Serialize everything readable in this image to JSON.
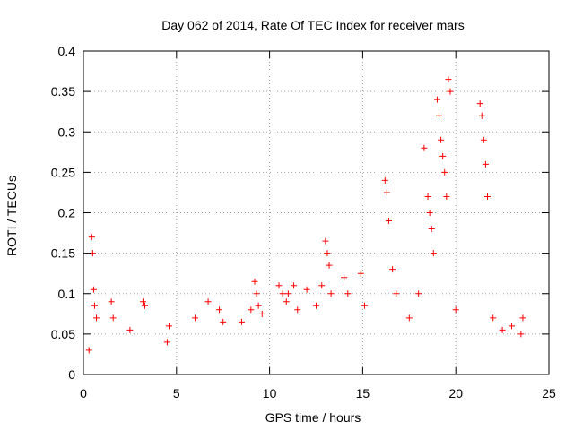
{
  "chart_data": {
    "type": "scatter",
    "title": "Day 062 of 2014, Rate Of TEC Index for receiver mars",
    "xlabel": "GPS time / hours",
    "ylabel": "ROTI / TECUs",
    "xlim": [
      0,
      25
    ],
    "ylim": [
      0,
      0.4
    ],
    "xticks": [
      0,
      5,
      10,
      15,
      20,
      25
    ],
    "yticks": [
      0,
      0.05,
      0.1,
      0.15,
      0.2,
      0.25,
      0.3,
      0.35,
      0.4
    ],
    "xtick_labels": [
      "0",
      "5",
      "10",
      "15",
      "20",
      "25"
    ],
    "ytick_labels": [
      "0",
      "0.05",
      "0.1",
      "0.15",
      "0.2",
      "0.25",
      "0.3",
      "0.35",
      "0.4"
    ],
    "grid": true,
    "marker": "+",
    "color": "#ff0000",
    "series": [
      {
        "name": "ROTI",
        "x": [
          0.3,
          0.45,
          0.5,
          0.55,
          0.6,
          0.7,
          1.5,
          1.6,
          2.5,
          3.2,
          3.3,
          4.5,
          4.6,
          6.0,
          6.7,
          7.3,
          7.5,
          8.5,
          9.0,
          9.2,
          9.3,
          9.4,
          9.6,
          10.5,
          10.7,
          10.9,
          11.0,
          11.3,
          11.5,
          12.0,
          12.5,
          12.8,
          13.0,
          13.1,
          13.2,
          13.3,
          14.0,
          14.2,
          14.9,
          15.1,
          16.2,
          16.3,
          16.4,
          16.6,
          16.8,
          17.5,
          18.0,
          18.3,
          18.5,
          18.6,
          18.7,
          18.8,
          19.0,
          19.1,
          19.2,
          19.3,
          19.4,
          19.5,
          19.6,
          19.7,
          20.0,
          21.3,
          21.4,
          21.5,
          21.6,
          21.7,
          22.0,
          22.5,
          23.0,
          23.5,
          23.6
        ],
        "y": [
          0.03,
          0.17,
          0.15,
          0.105,
          0.085,
          0.07,
          0.09,
          0.07,
          0.055,
          0.09,
          0.085,
          0.04,
          0.06,
          0.07,
          0.09,
          0.08,
          0.065,
          0.065,
          0.08,
          0.115,
          0.1,
          0.085,
          0.075,
          0.11,
          0.1,
          0.09,
          0.1,
          0.11,
          0.08,
          0.105,
          0.085,
          0.11,
          0.165,
          0.15,
          0.135,
          0.1,
          0.12,
          0.1,
          0.125,
          0.085,
          0.24,
          0.225,
          0.19,
          0.13,
          0.1,
          0.07,
          0.1,
          0.28,
          0.22,
          0.2,
          0.18,
          0.15,
          0.34,
          0.32,
          0.29,
          0.27,
          0.25,
          0.22,
          0.365,
          0.35,
          0.08,
          0.335,
          0.32,
          0.29,
          0.26,
          0.22,
          0.07,
          0.055,
          0.06,
          0.05,
          0.07
        ]
      }
    ]
  }
}
